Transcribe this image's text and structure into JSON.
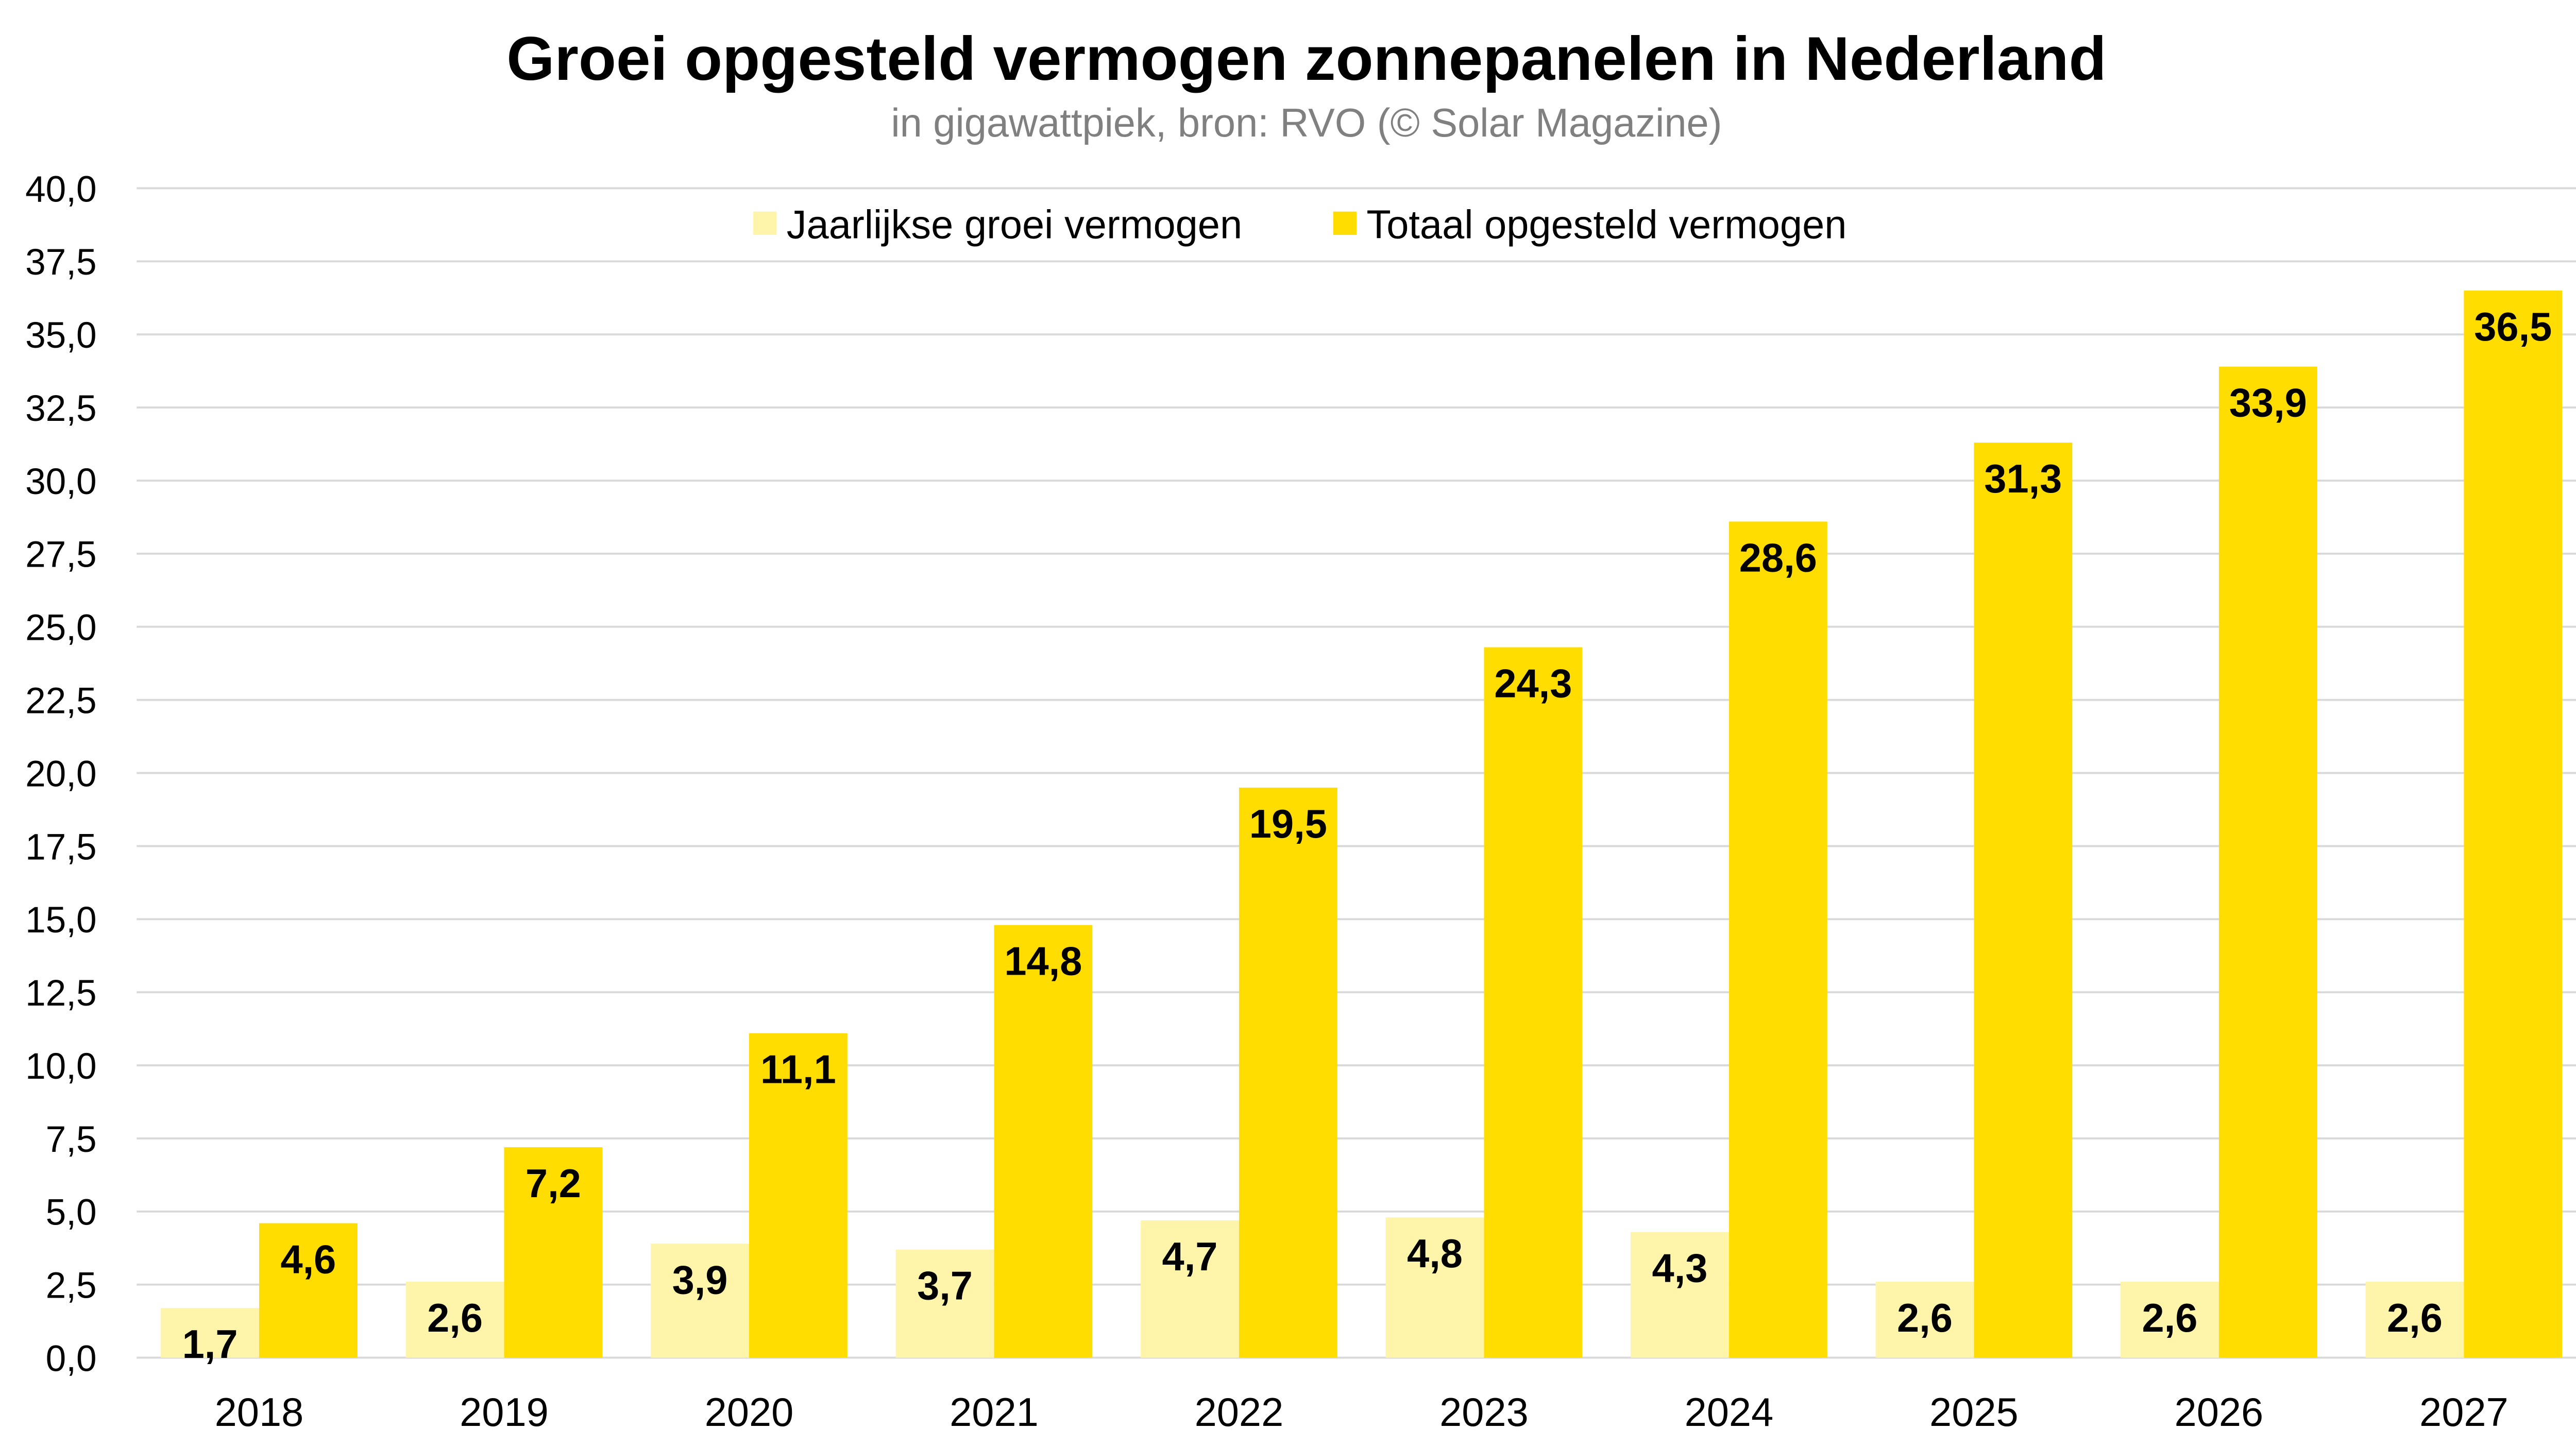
{
  "chart_data": {
    "type": "bar",
    "title": "Groei opgesteld vermogen zonnepanelen in Nederland",
    "subtitle": "in gigawattpiek, bron: RVO (© Solar Magazine)",
    "xlabel": "",
    "ylabel": "",
    "ylim": [
      0,
      40
    ],
    "ytick_step": 2.5,
    "yticks": [
      "0,0",
      "2,5",
      "5,0",
      "7,5",
      "10,0",
      "12,5",
      "15,0",
      "17,5",
      "20,0",
      "22,5",
      "25,0",
      "27,5",
      "30,0",
      "32,5",
      "35,0",
      "37,5",
      "40,0"
    ],
    "grid": true,
    "legend_position": "top-center",
    "categories": [
      "2018",
      "2019",
      "2020",
      "2021",
      "2022",
      "2023",
      "2024",
      "2025",
      "2026",
      "2027"
    ],
    "series": [
      {
        "name": "Jaarlijkse groei vermogen",
        "color": "#FFF5AA",
        "values": [
          1.7,
          2.6,
          3.9,
          3.7,
          4.7,
          4.8,
          4.3,
          2.6,
          2.6,
          2.6
        ],
        "labels": [
          "1,7",
          "2,6",
          "3,9",
          "3,7",
          "4,7",
          "4,8",
          "4,3",
          "2,6",
          "2,6",
          "2,6"
        ]
      },
      {
        "name": "Totaal opgesteld vermogen",
        "color": "#FFDD00",
        "values": [
          4.6,
          7.2,
          11.1,
          14.8,
          19.5,
          24.3,
          28.6,
          31.3,
          33.9,
          36.5
        ],
        "labels": [
          "4,6",
          "7,2",
          "11,1",
          "14,8",
          "19,5",
          "24,3",
          "28,6",
          "31,3",
          "33,9",
          "36,5"
        ]
      }
    ]
  }
}
